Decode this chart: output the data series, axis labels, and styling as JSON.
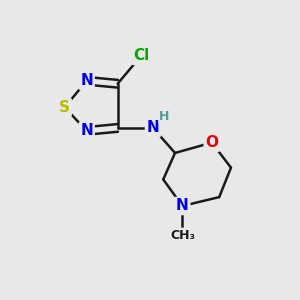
{
  "bg_color": "#e8e8e8",
  "bond_color": "#1a1a1a",
  "bond_width": 1.8,
  "atom_colors": {
    "N": "#0000ee",
    "S": "#bbbb00",
    "O": "#ee0000",
    "Cl": "#00aa00",
    "H": "#559999",
    "C": "#1a1a1a"
  },
  "font_size_atom": 11,
  "font_size_small": 9,
  "figsize": [
    3.0,
    3.0
  ],
  "dpi": 100,
  "xlim": [
    0,
    10
  ],
  "ylim": [
    0,
    10
  ]
}
